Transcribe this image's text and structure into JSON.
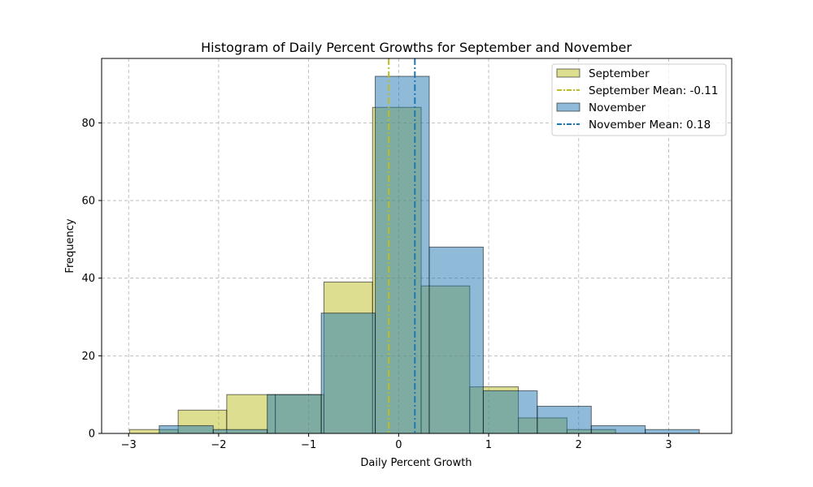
{
  "chart_data": {
    "type": "histogram",
    "title": "Histogram of Daily Percent Growths for September and November",
    "xlabel": "Daily Percent Growth",
    "ylabel": "Frequency",
    "xlim": [
      -3.3,
      3.7
    ],
    "ylim": [
      0,
      96.6
    ],
    "xticks": [
      -3,
      -2,
      -1,
      0,
      1,
      2,
      3
    ],
    "xtick_labels": [
      "−3",
      "−2",
      "−1",
      "0",
      "1",
      "2",
      "3"
    ],
    "yticks": [
      0,
      20,
      40,
      60,
      80
    ],
    "ytick_labels": [
      "0",
      "20",
      "40",
      "60",
      "80"
    ],
    "grid": true,
    "legend_position": "top-right",
    "series": [
      {
        "name": "September",
        "kind": "bars",
        "color": "#bcbd22",
        "alpha": 0.5,
        "bin_edges": [
          -2.99,
          -2.45,
          -1.91,
          -1.37,
          -0.83,
          -0.29,
          0.25,
          0.79,
          1.33,
          1.87,
          2.41
        ],
        "counts": [
          1,
          6,
          10,
          10,
          39,
          84,
          38,
          12,
          4,
          1
        ]
      },
      {
        "name": "November",
        "kind": "bars",
        "color": "#1f77b4",
        "alpha": 0.5,
        "bin_edges": [
          -2.66,
          -2.06,
          -1.46,
          -0.86,
          -0.26,
          0.34,
          0.94,
          1.54,
          2.14,
          2.74,
          3.34
        ],
        "counts": [
          2,
          1,
          10,
          31,
          92,
          48,
          11,
          7,
          2,
          1
        ]
      },
      {
        "name": "September Mean: -0.11",
        "kind": "vline",
        "x": -0.11,
        "color": "#bcbd22",
        "linestyle": "dash-dot"
      },
      {
        "name": "November Mean: 0.18",
        "kind": "vline",
        "x": 0.18,
        "color": "#1f77b4",
        "linestyle": "dash-dot"
      }
    ],
    "legend": [
      {
        "label": "September",
        "kind": "patch",
        "color": "#bcbd22"
      },
      {
        "label": "September Mean: -0.11",
        "kind": "line",
        "color": "#bcbd22"
      },
      {
        "label": "November",
        "kind": "patch",
        "color": "#1f77b4"
      },
      {
        "label": "November Mean: 0.18",
        "kind": "line",
        "color": "#1f77b4"
      }
    ]
  }
}
